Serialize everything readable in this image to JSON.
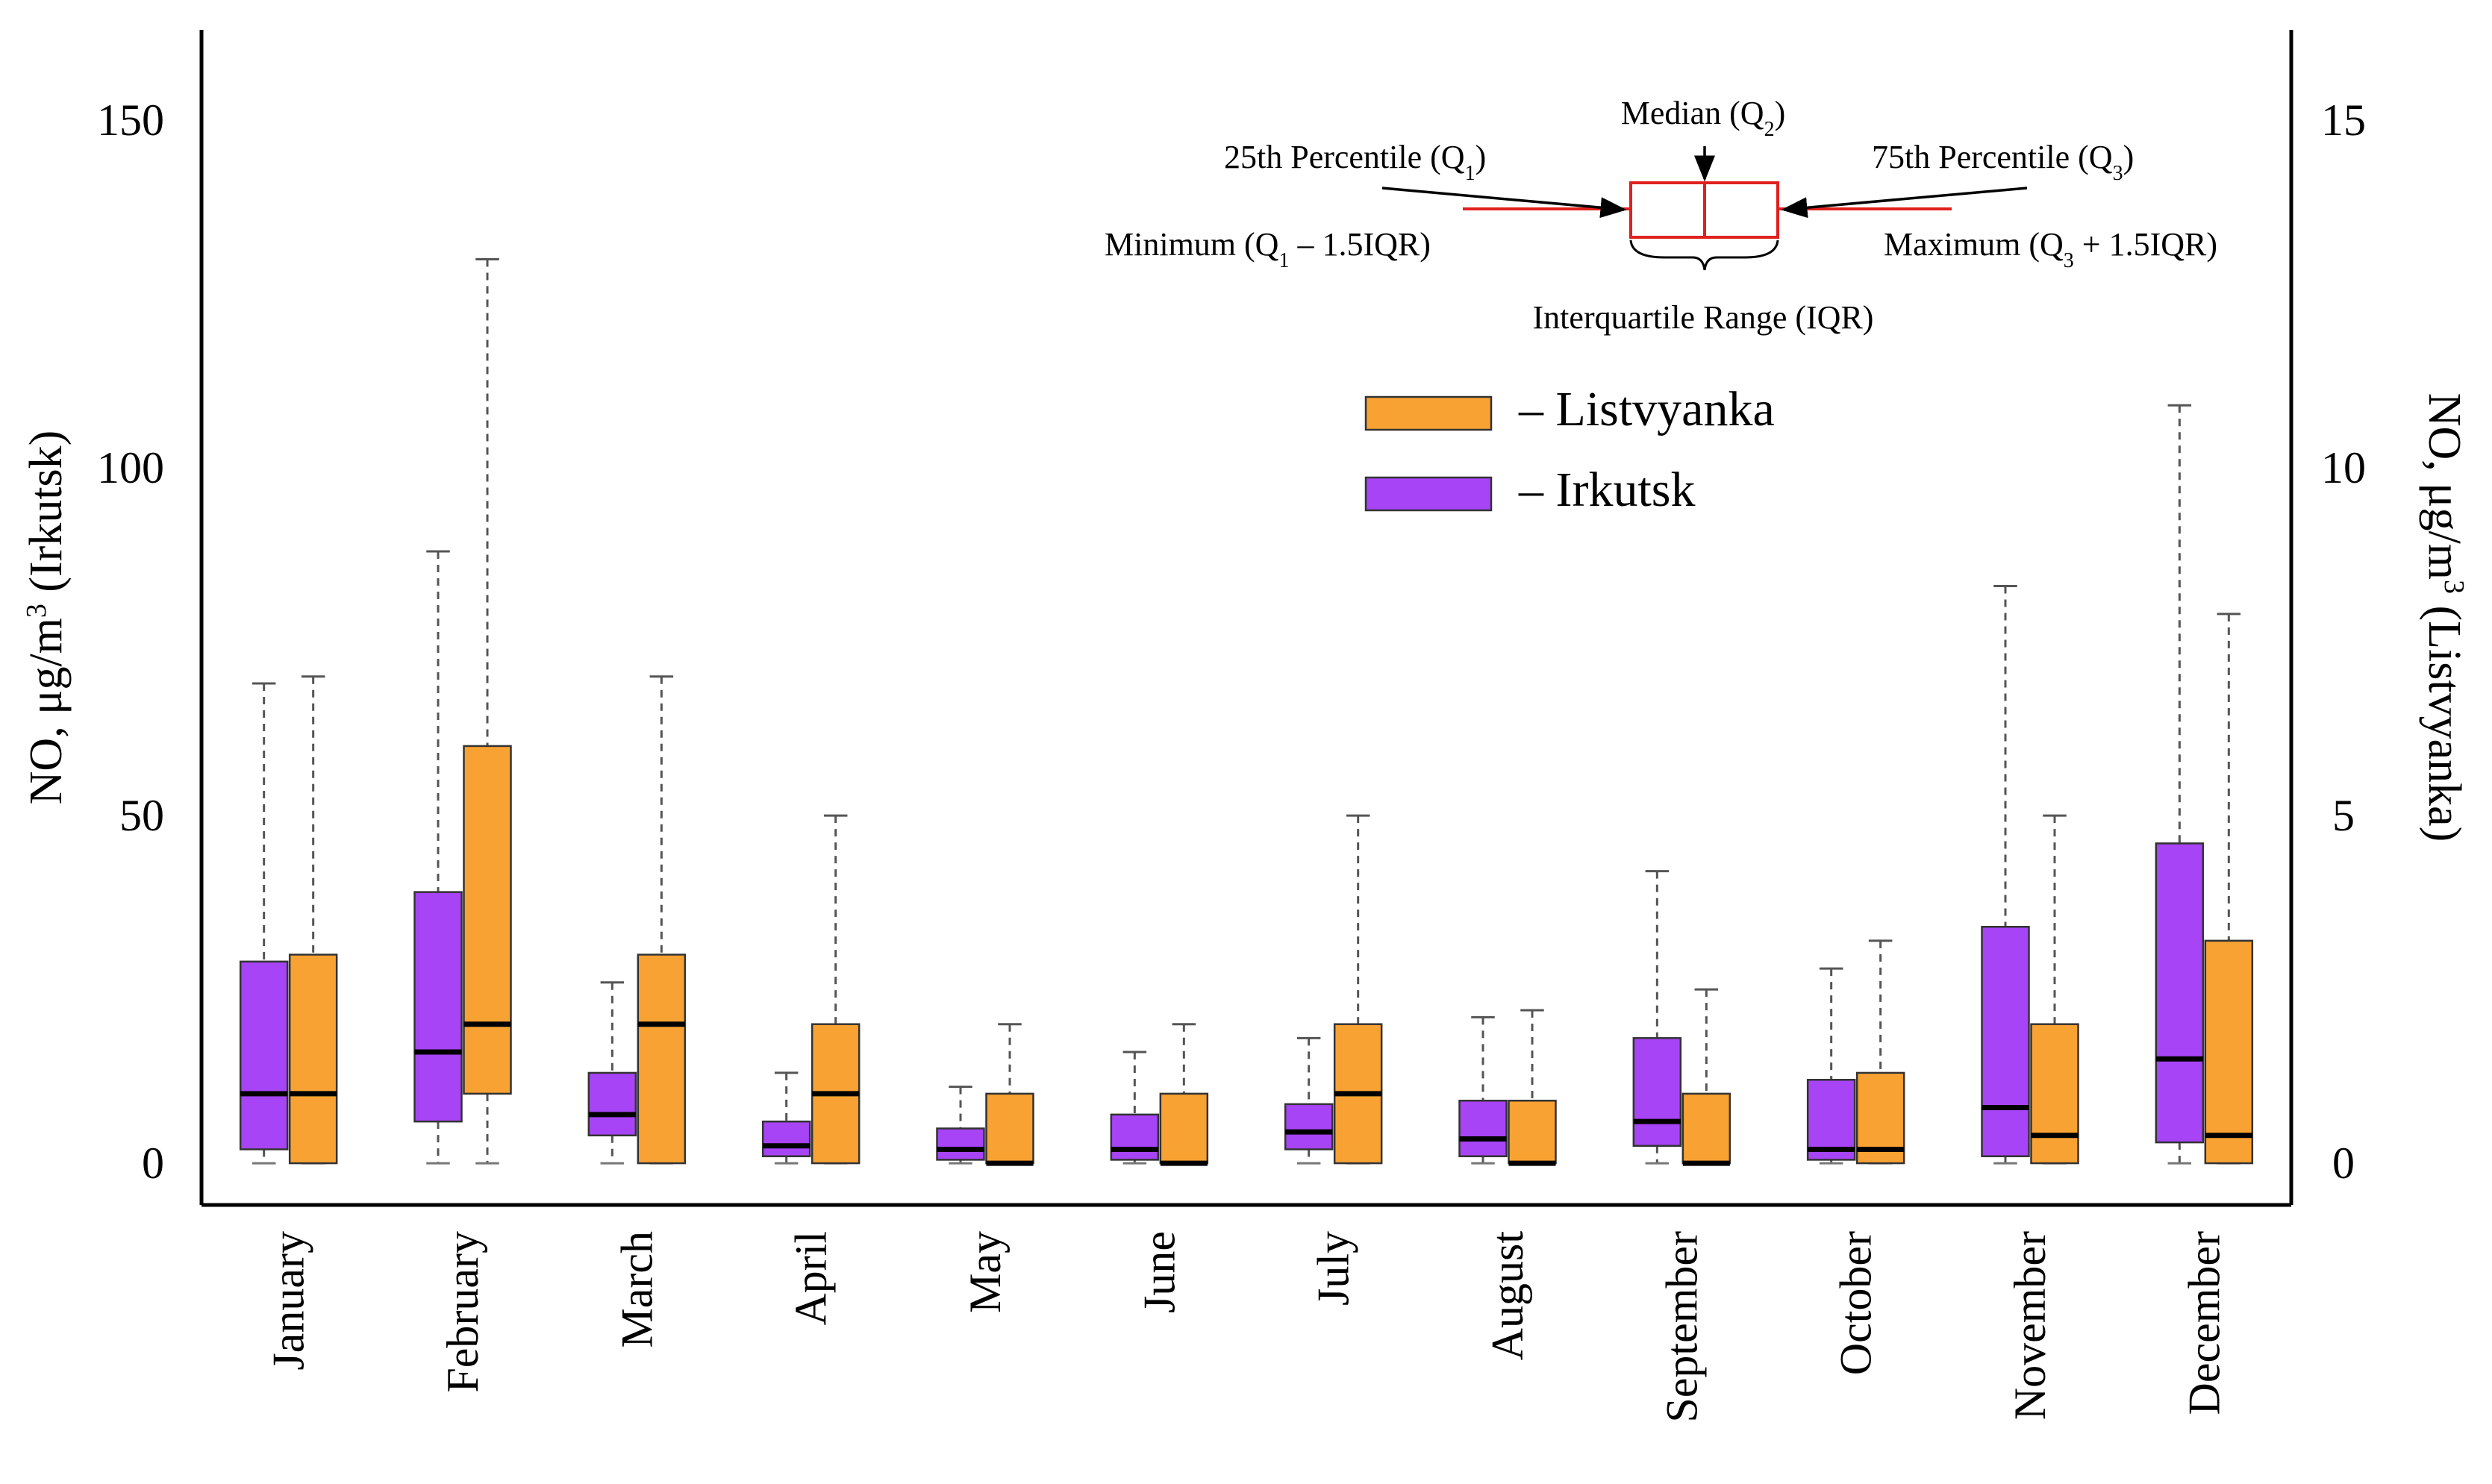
{
  "chart_data": {
    "type": "boxplot",
    "categories": [
      "January",
      "February",
      "March",
      "April",
      "May",
      "June",
      "July",
      "August",
      "September",
      "October",
      "November",
      "December"
    ],
    "y_left": {
      "label": "NO, μg/m",
      "label_sup": "3",
      "label_suffix": " (Irkutsk)",
      "ticks": [
        0,
        50,
        100,
        150
      ],
      "range": [
        -6,
        163
      ]
    },
    "y_right": {
      "label": "NO, μg/m",
      "label_sup": "3",
      "label_suffix": " (Listvyanka)",
      "ticks": [
        0,
        5,
        10,
        15
      ],
      "range": [
        -0.6,
        16.3
      ]
    },
    "series": [
      {
        "name": "Irkutsk",
        "legend_label": "– Irkutsk",
        "color": "#a644f6",
        "axis": "left",
        "boxes": [
          {
            "min": 0,
            "q1": 2,
            "median": 10,
            "q3": 29,
            "max": 69
          },
          {
            "min": 0,
            "q1": 6,
            "median": 16,
            "q3": 39,
            "max": 88
          },
          {
            "min": 0,
            "q1": 4,
            "median": 7,
            "q3": 13,
            "max": 26
          },
          {
            "min": 0,
            "q1": 1,
            "median": 2.5,
            "q3": 6,
            "max": 13
          },
          {
            "min": 0,
            "q1": 0.5,
            "median": 2,
            "q3": 5,
            "max": 11
          },
          {
            "min": 0,
            "q1": 0.5,
            "median": 2,
            "q3": 7,
            "max": 16
          },
          {
            "min": 0,
            "q1": 2,
            "median": 4.5,
            "q3": 8.5,
            "max": 18
          },
          {
            "min": 0,
            "q1": 1,
            "median": 3.5,
            "q3": 9,
            "max": 21
          },
          {
            "min": 0,
            "q1": 2.5,
            "median": 6,
            "q3": 18,
            "max": 42
          },
          {
            "min": 0,
            "q1": 0.5,
            "median": 2,
            "q3": 12,
            "max": 28
          },
          {
            "min": 0,
            "q1": 1,
            "median": 8,
            "q3": 34,
            "max": 83
          },
          {
            "min": 0,
            "q1": 3,
            "median": 15,
            "q3": 46,
            "max": 109
          }
        ]
      },
      {
        "name": "Listvyanka",
        "legend_label": "– Listvyanka",
        "color": "#f8a233",
        "axis": "right",
        "boxes": [
          {
            "min": 0,
            "q1": 0,
            "median": 1.0,
            "q3": 3.0,
            "max": 7.0
          },
          {
            "min": 0,
            "q1": 1.0,
            "median": 2.0,
            "q3": 6.0,
            "max": 13.0
          },
          {
            "min": 0,
            "q1": 0,
            "median": 2.0,
            "q3": 3.0,
            "max": 7.0
          },
          {
            "min": 0,
            "q1": 0,
            "median": 1.0,
            "q3": 2.0,
            "max": 5.0
          },
          {
            "min": 0,
            "q1": 0,
            "median": 0,
            "q3": 1.0,
            "max": 2.0
          },
          {
            "min": 0,
            "q1": 0,
            "median": 0,
            "q3": 1.0,
            "max": 2.0
          },
          {
            "min": 0,
            "q1": 0,
            "median": 1.0,
            "q3": 2.0,
            "max": 5.0
          },
          {
            "min": 0,
            "q1": 0,
            "median": 0,
            "q3": 0.9,
            "max": 2.2
          },
          {
            "min": 0,
            "q1": 0,
            "median": 0,
            "q3": 1.0,
            "max": 2.5
          },
          {
            "min": 0,
            "q1": 0,
            "median": 0.2,
            "q3": 1.3,
            "max": 3.2
          },
          {
            "min": 0,
            "q1": 0,
            "median": 0.4,
            "q3": 2.0,
            "max": 5.0
          },
          {
            "min": 0,
            "q1": 0,
            "median": 0.4,
            "q3": 3.2,
            "max": 7.9
          }
        ]
      }
    ],
    "key": {
      "median": "Median (Q",
      "median_sub": "2",
      "q1": "25th Percentile (Q",
      "q1_sub": "1",
      "q3": "75th Percentile (Q",
      "q3_sub": "3",
      "minimum": "Minimum (Q",
      "minimum_sub": "1",
      "minimum_suffix": " – 1.5IQR)",
      "maximum": "Maximum (Q",
      "maximum_sub": "3",
      "maximum_suffix": " + 1.5IQR)",
      "iqr": "Interquartile Range (IQR)",
      "close_paren": ")"
    },
    "legend_position": "top-right",
    "grid": false
  }
}
